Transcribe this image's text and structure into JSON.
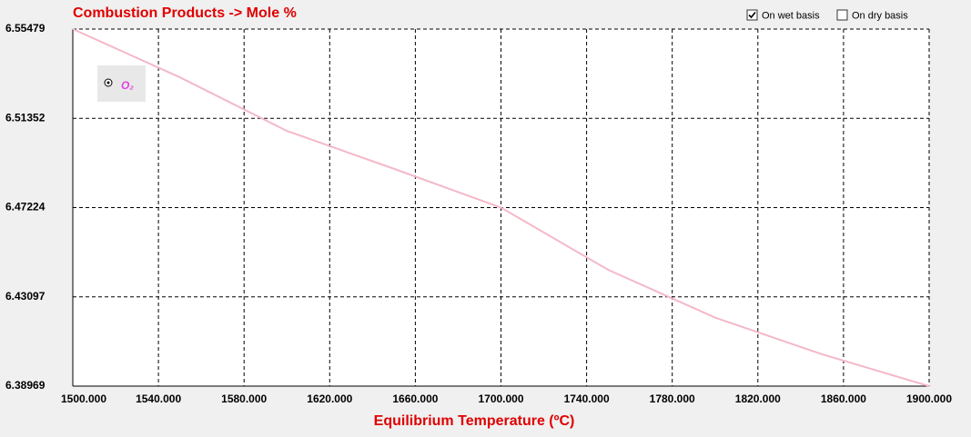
{
  "chart_data": {
    "type": "line",
    "title": "Combustion Products -> Mole %",
    "x_label": "Equilibrium Temperature (ºC)",
    "x": [
      1500,
      1550,
      1600,
      1650,
      1700,
      1750,
      1800,
      1850,
      1900
    ],
    "series": [
      {
        "name": "O₂",
        "color": "#f4b8c8",
        "legend_color": "#e040e0",
        "values": [
          6.55479,
          6.5325,
          6.5077,
          6.4902,
          6.47224,
          6.4435,
          6.4214,
          6.4044,
          6.38969
        ]
      }
    ],
    "xlim": [
      1500,
      1900
    ],
    "xticks": [
      {
        "value": 1500,
        "label": "1500.000"
      },
      {
        "value": 1540,
        "label": "1540.000"
      },
      {
        "value": 1580,
        "label": "1580.000"
      },
      {
        "value": 1620,
        "label": "1620.000"
      },
      {
        "value": 1660,
        "label": "1660.000"
      },
      {
        "value": 1700,
        "label": "1700.000"
      },
      {
        "value": 1740,
        "label": "1740.000"
      },
      {
        "value": 1780,
        "label": "1780.000"
      },
      {
        "value": 1820,
        "label": "1820.000"
      },
      {
        "value": 1860,
        "label": "1860.000"
      },
      {
        "value": 1900,
        "label": "1900.000"
      }
    ],
    "ylim": [
      6.38969,
      6.55479
    ],
    "yticks": [
      6.38969,
      6.43097,
      6.47224,
      6.51352,
      6.55479
    ],
    "grid": true
  },
  "controls": [
    {
      "label": "On wet basis",
      "checked": true
    },
    {
      "label": "On dry basis",
      "checked": false
    }
  ]
}
